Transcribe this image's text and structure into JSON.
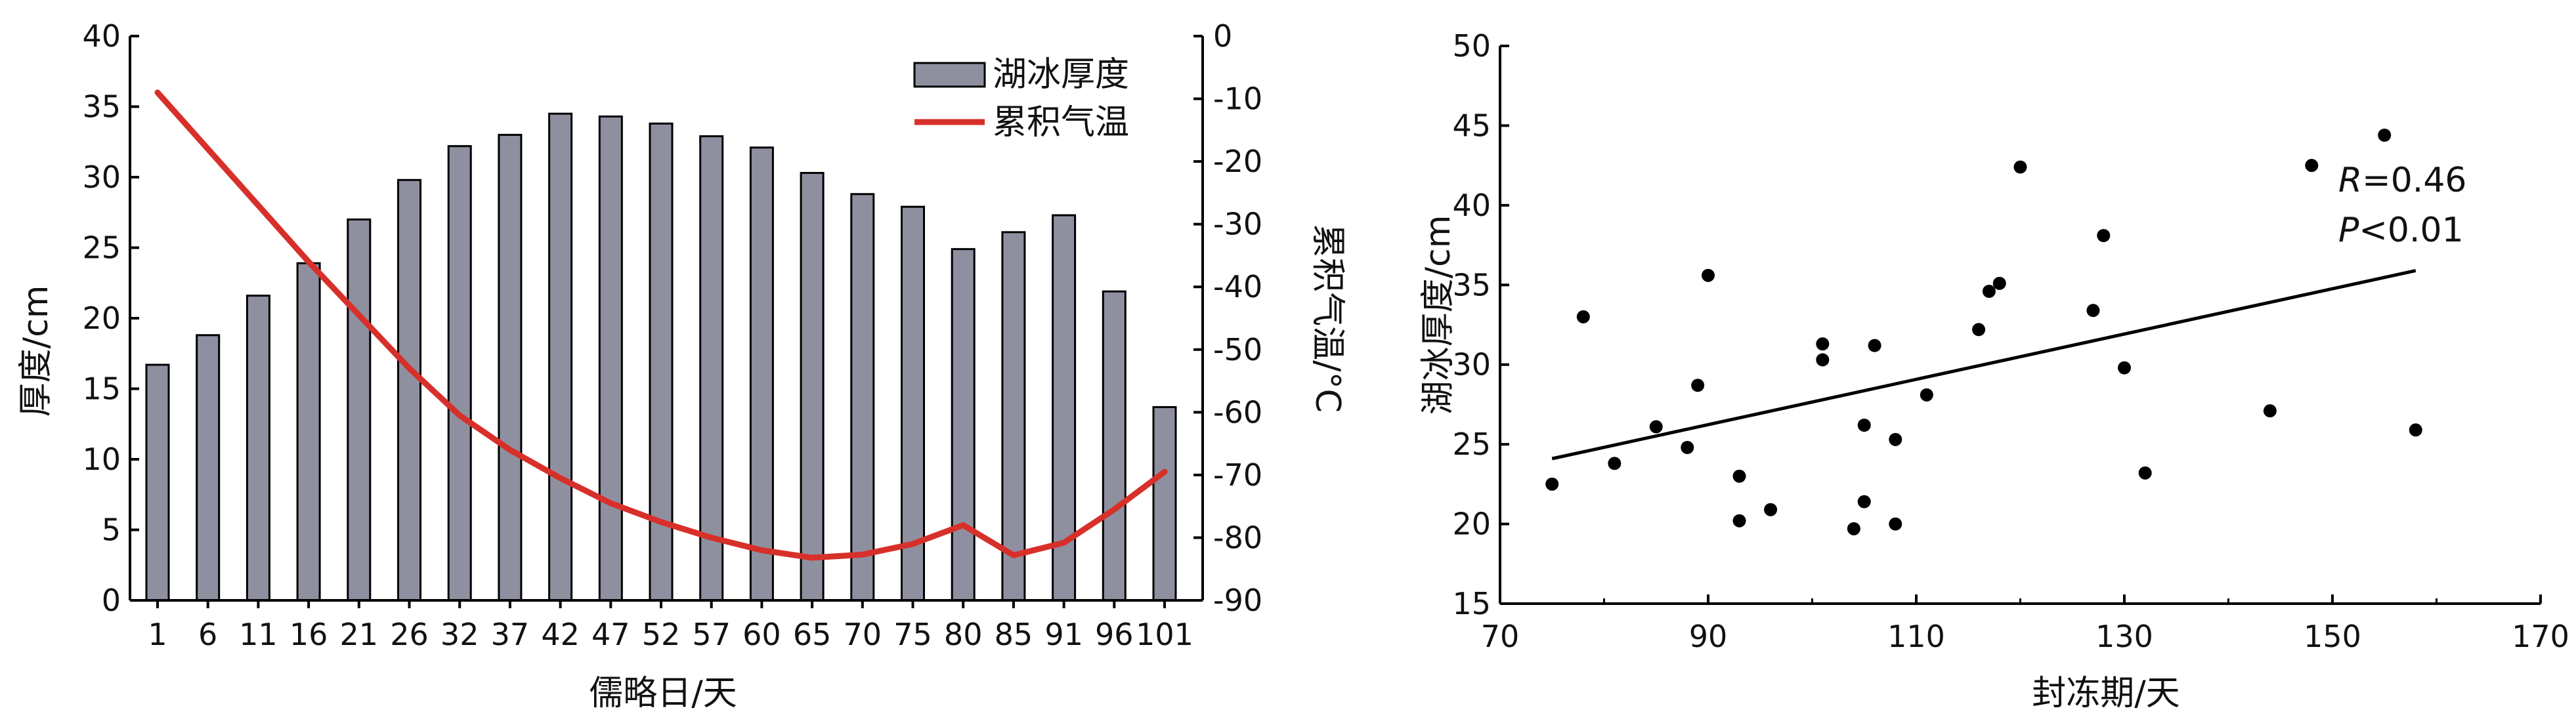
{
  "chart_data": [
    {
      "type": "bar+line",
      "title": "",
      "xlabel": "儒略日/天",
      "ylabel": "厚度/cm",
      "y2label": "累积气温/°C",
      "categories": [
        "1",
        "6",
        "11",
        "16",
        "21",
        "26",
        "32",
        "37",
        "42",
        "47",
        "52",
        "57",
        "60",
        "65",
        "70",
        "75",
        "80",
        "85",
        "91",
        "96",
        "101"
      ],
      "ylim": [
        0,
        40
      ],
      "y2lim": [
        -90,
        0
      ],
      "yticks": [
        "0",
        "5",
        "10",
        "15",
        "20",
        "25",
        "30",
        "35",
        "40"
      ],
      "y2ticks": [
        "0",
        "-10",
        "-20",
        "-30",
        "-40",
        "-50",
        "-60",
        "-70",
        "-80",
        "-90"
      ],
      "series": [
        {
          "name": "湖冰厚度",
          "type": "bar",
          "axis": "left",
          "color": "#8e90a0",
          "values": [
            16.7,
            18.8,
            21.6,
            23.9,
            27.0,
            29.8,
            32.2,
            33.0,
            34.5,
            34.3,
            33.8,
            32.9,
            32.1,
            30.3,
            28.8,
            27.9,
            24.9,
            26.1,
            27.3,
            21.9,
            13.7
          ]
        },
        {
          "name": "累积气温",
          "type": "line",
          "axis": "right",
          "color": "#d7302a",
          "values": [
            -9,
            -18,
            -27,
            -36,
            -44.5,
            -53,
            -60.5,
            -66,
            -70.5,
            -74.5,
            -77.5,
            -80,
            -82,
            -83.2,
            -82.7,
            -81,
            -78,
            -82.8,
            -80.8,
            -75.5,
            -69.5
          ]
        }
      ],
      "legend": "top-right",
      "grid": false
    },
    {
      "type": "scatter",
      "title": "",
      "xlabel": "封冻期/天",
      "ylabel": "湖冰厚度/cm",
      "xlim": [
        70,
        170
      ],
      "ylim": [
        15,
        50
      ],
      "xticks": [
        "70",
        "90",
        "110",
        "130",
        "150",
        "170"
      ],
      "yticks": [
        "15",
        "20",
        "25",
        "30",
        "35",
        "40",
        "45",
        "50"
      ],
      "points": [
        [
          75,
          22.5
        ],
        [
          78,
          33
        ],
        [
          81,
          23.8
        ],
        [
          85,
          26.1
        ],
        [
          88,
          24.8
        ],
        [
          89,
          28.7
        ],
        [
          90,
          35.6
        ],
        [
          93,
          23
        ],
        [
          93,
          20.2
        ],
        [
          96,
          20.9
        ],
        [
          101,
          31.3
        ],
        [
          101,
          30.3
        ],
        [
          104,
          19.7
        ],
        [
          105,
          26.2
        ],
        [
          105,
          21.4
        ],
        [
          106,
          31.2
        ],
        [
          108,
          25.3
        ],
        [
          108,
          20
        ],
        [
          111,
          28.1
        ],
        [
          116,
          32.2
        ],
        [
          117,
          34.6
        ],
        [
          118,
          35.1
        ],
        [
          120,
          42.4
        ],
        [
          127,
          33.4
        ],
        [
          128,
          38.1
        ],
        [
          130,
          29.8
        ],
        [
          132,
          23.2
        ],
        [
          144,
          27.1
        ],
        [
          148,
          42.5
        ],
        [
          155,
          44.4
        ],
        [
          158,
          25.9
        ]
      ],
      "fit_line": [
        [
          75,
          24.1
        ],
        [
          158,
          35.9
        ]
      ],
      "annotations": {
        "r_italic": "R",
        "r_value": "=0.46",
        "p_italic": "P",
        "p_value": "<0.01"
      },
      "grid": false
    }
  ]
}
